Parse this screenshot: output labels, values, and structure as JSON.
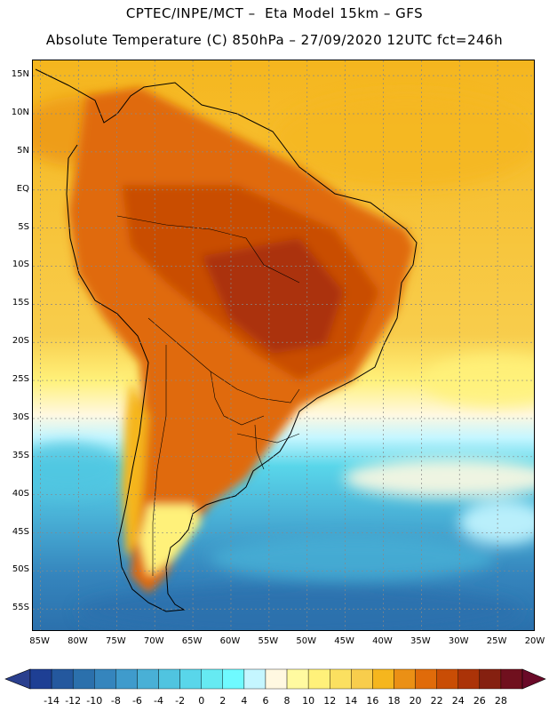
{
  "title": {
    "line1": "CPTEC/INPE/MCT –  Eta Model 15km – GFS",
    "line2": "Absolute Temperature (C) 850hPa – 27/09/2020 12UTC fct=246h"
  },
  "map": {
    "lon_labels": [
      "85W",
      "80W",
      "75W",
      "70W",
      "65W",
      "60W",
      "55W",
      "50W",
      "45W",
      "40W",
      "35W",
      "30W",
      "25W",
      "20W"
    ],
    "lon_values": [
      -85,
      -80,
      -75,
      -70,
      -65,
      -60,
      -55,
      -50,
      -45,
      -40,
      -35,
      -30,
      -25,
      -20
    ],
    "lat_labels": [
      "15N",
      "10N",
      "5N",
      "EQ",
      "5S",
      "10S",
      "15S",
      "20S",
      "25S",
      "30S",
      "35S",
      "40S",
      "45S",
      "50S",
      "55S"
    ],
    "lat_values": [
      15,
      10,
      5,
      0,
      -5,
      -10,
      -15,
      -20,
      -25,
      -30,
      -35,
      -40,
      -45,
      -50,
      -55
    ],
    "extent": {
      "lon_min": -86,
      "lon_max": -20,
      "lat_min": -58,
      "lat_max": 17
    }
  },
  "colorbar": {
    "labels": [
      "-14",
      "-12",
      "-10",
      "-8",
      "-6",
      "-4",
      "-2",
      "0",
      "2",
      "4",
      "6",
      "8",
      "10",
      "12",
      "14",
      "16",
      "18",
      "20",
      "22",
      "24",
      "26",
      "28"
    ],
    "colors": [
      "#1e3f94",
      "#24589e",
      "#2b70ac",
      "#3585bd",
      "#3f9bcc",
      "#49b0d6",
      "#50c4e0",
      "#59d6ea",
      "#66eaf2",
      "#6ffaff",
      "#c5f6ff",
      "#fff8e1",
      "#fffaa0",
      "#fff17a",
      "#fbe060",
      "#f8cd4c",
      "#f5b61e",
      "#eb9015",
      "#e06b0a",
      "#c94d05",
      "#ab3308",
      "#852010",
      "#70101e"
    ],
    "under_color": "#2a3f8e",
    "over_color": "#6a0a28"
  }
}
